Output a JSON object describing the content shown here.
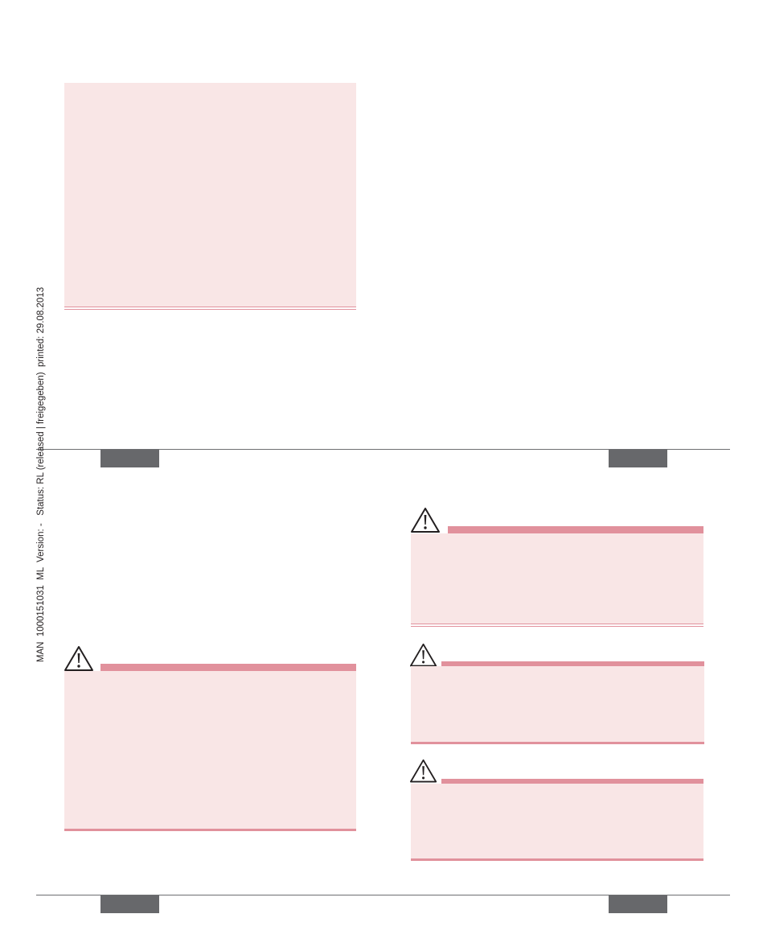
{
  "side_note": "MAN  1000151031  ML  Version: -   Status: RL (released | freigegeben)  printed: 29.08.2013"
}
